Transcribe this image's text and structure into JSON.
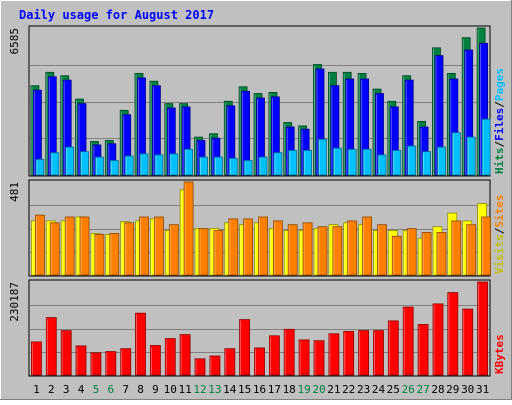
{
  "chart_data": {
    "type": "bar",
    "title": "Daily usage for August 2017",
    "categories": [
      "1",
      "2",
      "3",
      "4",
      "5",
      "6",
      "7",
      "8",
      "9",
      "10",
      "11",
      "12",
      "13",
      "14",
      "15",
      "16",
      "17",
      "18",
      "19",
      "20",
      "21",
      "22",
      "23",
      "24",
      "25",
      "26",
      "27",
      "28",
      "29",
      "30",
      "31"
    ],
    "weekend_days": [
      "5",
      "6",
      "12",
      "13",
      "19",
      "20",
      "26",
      "27"
    ],
    "panels": [
      {
        "id": "hits",
        "max_label": "6585",
        "ylim": [
          0,
          6585
        ],
        "grid": true,
        "side_labels": [
          {
            "text": "Hits",
            "color": "#008040"
          },
          {
            "text": "/",
            "color": "#000000"
          },
          {
            "text": "Files",
            "color": "#0000ff"
          },
          {
            "text": "/",
            "color": "#000000"
          },
          {
            "text": "Pages",
            "color": "#00c0ff"
          }
        ],
        "series": [
          {
            "name": "Hits",
            "color": "#008040",
            "values": [
              4000,
              4600,
              4450,
              3400,
              1500,
              1550,
              2900,
              4550,
              4200,
              3200,
              3200,
              1700,
              1850,
              3300,
              3950,
              3650,
              3700,
              2350,
              2200,
              4950,
              4600,
              4600,
              4550,
              3850,
              3300,
              4450,
              2400,
              5700,
              4550,
              6150,
              6585
            ]
          },
          {
            "name": "Files",
            "color": "#0000ff",
            "values": [
              3800,
              4400,
              4250,
              3200,
              1350,
              1400,
              2700,
              4350,
              4000,
              3000,
              3050,
              1550,
              1650,
              3100,
              3750,
              3450,
              3500,
              2150,
              2050,
              4750,
              4000,
              4300,
              4300,
              3650,
              3050,
              4250,
              2150,
              5350,
              4300,
              5600,
              5900
            ]
          },
          {
            "name": "Pages",
            "color": "#00c0ff",
            "values": [
              700,
              1000,
              1250,
              1050,
              800,
              650,
              850,
              950,
              900,
              950,
              1150,
              800,
              800,
              750,
              650,
              800,
              1000,
              1100,
              1100,
              1600,
              1200,
              1150,
              1150,
              900,
              1100,
              1300,
              1050,
              1250,
              1900,
              1700,
              2500
            ]
          }
        ]
      },
      {
        "id": "visits",
        "max_label": "481",
        "ylim": [
          0,
          481
        ],
        "grid": true,
        "side_labels": [
          {
            "text": "Visits",
            "color": "#c0c000"
          },
          {
            "text": "/",
            "color": "#000000"
          },
          {
            "text": "Sites",
            "color": "#ff8000"
          }
        ],
        "series": [
          {
            "name": "Visits",
            "color": "#ffff00",
            "values": [
              280,
              280,
              280,
              300,
              215,
              210,
              275,
              280,
              290,
              230,
              440,
              240,
              240,
              270,
              260,
              270,
              240,
              230,
              230,
              240,
              260,
              270,
              260,
              230,
              230,
              230,
              190,
              250,
              320,
              280,
              370
            ]
          },
          {
            "name": "Sites",
            "color": "#ff8000",
            "values": [
              310,
              270,
              300,
              300,
              210,
              215,
              270,
              300,
              300,
              260,
              481,
              240,
              230,
              290,
              290,
              300,
              280,
              260,
              270,
              250,
              250,
              280,
              300,
              260,
              200,
              240,
              220,
              220,
              280,
              260,
              300
            ]
          }
        ]
      },
      {
        "id": "kbytes",
        "max_label": "230187",
        "ylim": [
          0,
          230187
        ],
        "grid": true,
        "side_labels": [
          {
            "text": "KBytes",
            "color": "#ff0000"
          }
        ],
        "series": [
          {
            "name": "KBytes",
            "color": "#ff0000",
            "values": [
              82000,
              142000,
              110000,
              72000,
              55000,
              58000,
              65000,
              153000,
              73000,
              90000,
              100000,
              40000,
              47000,
              65000,
              137000,
              67000,
              97000,
              113000,
              87000,
              85000,
              102000,
              108000,
              110000,
              110000,
              134000,
              168000,
              125000,
              176000,
              204000,
              163000,
              230187
            ]
          }
        ]
      }
    ]
  }
}
